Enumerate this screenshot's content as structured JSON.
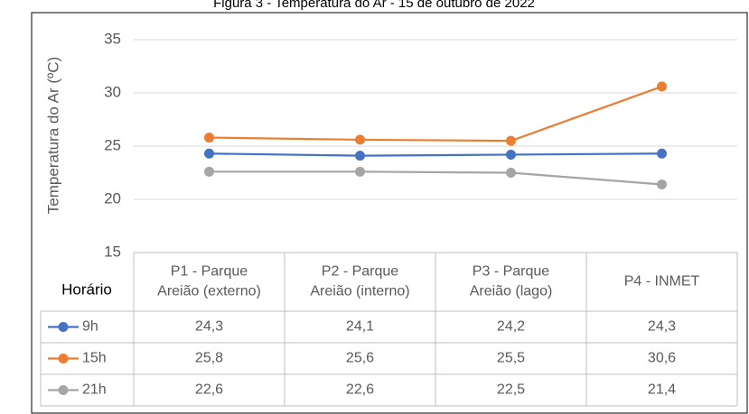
{
  "chart_data": {
    "type": "line",
    "title": "Figura 3 - Temperatura do Ar - 15 de outubro de 2022",
    "y_label": "Temperatura do Ar  (ºC)",
    "table_header": "Horário",
    "categories": [
      [
        "P1 - Parque",
        "Areião (externo)"
      ],
      [
        "P2 - Parque",
        "Areião (interno)"
      ],
      [
        "P3 - Parque",
        "Areião (lago)"
      ],
      [
        "P4 - INMET"
      ]
    ],
    "series": [
      {
        "name": "9h",
        "color": "#4472c4",
        "values": [
          24.3,
          24.1,
          24.2,
          24.3
        ],
        "value_labels": [
          "24,3",
          "24,1",
          "24,2",
          "24,3"
        ]
      },
      {
        "name": "15h",
        "color": "#ed7d31",
        "values": [
          25.8,
          25.6,
          25.5,
          30.6
        ],
        "value_labels": [
          "25,8",
          "25,6",
          "25,5",
          "30,6"
        ]
      },
      {
        "name": "21h",
        "color": "#a5a5a5",
        "values": [
          22.6,
          22.6,
          22.5,
          21.4
        ],
        "value_labels": [
          "22,6",
          "22,6",
          "22,5",
          "21,4"
        ]
      }
    ],
    "ylim": [
      15,
      35
    ],
    "yticks": [
      15,
      20,
      25,
      30,
      35
    ],
    "grid": true
  }
}
